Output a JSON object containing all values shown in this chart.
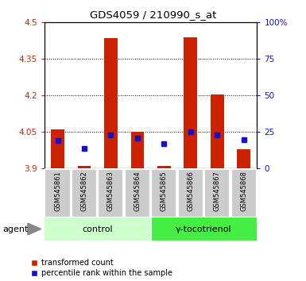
{
  "title": "GDS4059 / 210990_s_at",
  "samples": [
    "GSM545861",
    "GSM545862",
    "GSM545863",
    "GSM545864",
    "GSM545865",
    "GSM545866",
    "GSM545867",
    "GSM545868"
  ],
  "red_values": [
    4.062,
    3.91,
    4.435,
    4.05,
    3.91,
    4.44,
    4.205,
    3.98
  ],
  "blue_values": [
    19,
    14,
    23,
    21,
    17,
    25,
    23,
    20
  ],
  "ylim_left": [
    3.9,
    4.5
  ],
  "ylim_right": [
    0,
    100
  ],
  "yticks_left": [
    3.9,
    4.05,
    4.2,
    4.35,
    4.5
  ],
  "yticks_right": [
    0,
    25,
    50,
    75,
    100
  ],
  "ytick_labels_left": [
    "3.9",
    "4.05",
    "4.2",
    "4.35",
    "4.5"
  ],
  "ytick_labels_right": [
    "0",
    "25",
    "50",
    "75",
    "100%"
  ],
  "hlines": [
    4.05,
    4.2,
    4.35
  ],
  "control_label": "control",
  "treatment_label": "γ-tocotrienol",
  "agent_label": "agent",
  "red_color": "#cc2200",
  "blue_color": "#1111cc",
  "bar_width": 0.5,
  "bar_base": 3.9,
  "background_color": "#ffffff",
  "legend_red": "transformed count",
  "legend_blue": "percentile rank within the sample",
  "control_bg": "#ccffcc",
  "treatment_bg": "#44ee44",
  "sample_bg": "#cccccc",
  "plot_bg": "#ffffff"
}
